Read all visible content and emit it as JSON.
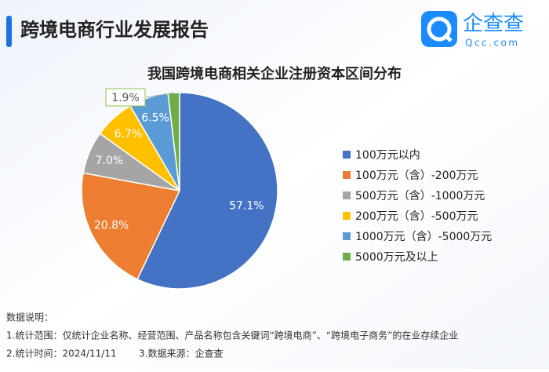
{
  "header": {
    "title": "跨境电商行业发展报告",
    "logo_name": "企查查",
    "logo_url": "Qcc.com"
  },
  "chart_data": {
    "type": "pie",
    "title": "我国跨境电商相关企业注册资本区间分布",
    "categories": [
      "100万元以内",
      "100万元（含）-200万元",
      "500万元（含）-1000万元",
      "200万元（含）-500万元",
      "1000万元（含）-5000万元",
      "5000万元及以上"
    ],
    "values": [
      57.1,
      20.8,
      7.0,
      6.7,
      6.5,
      1.9
    ],
    "value_labels": [
      "57.1%",
      "20.8%",
      "7.0%",
      "6.7%",
      "6.5%",
      "1.9%"
    ],
    "colors": [
      "#4472c4",
      "#ed7d31",
      "#a5a5a5",
      "#ffc000",
      "#5b9bd5",
      "#70ad47"
    ],
    "legend": "right"
  },
  "notes": {
    "heading": "数据说明：",
    "line1": "1.统计范围：仅统计企业名称、经营范围、产品名称包含关键词“跨境电商”、“跨境电子商务”的在业存续企业",
    "line2": "2.统计时间：2024/11/11",
    "line3": "3.数据来源：企查查"
  }
}
